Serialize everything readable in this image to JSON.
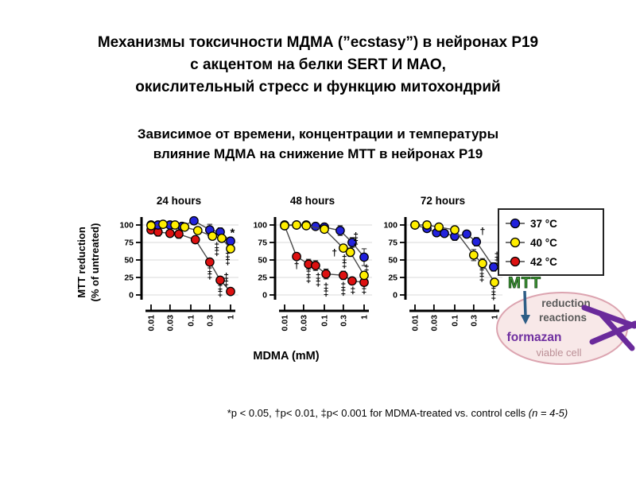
{
  "slide": {
    "title_lines": [
      "Механизмы токсичности МДМА (”ecstasy”) в нейронах Р19",
      "с акцентом на белки SERT И МАО,",
      "окислительный стресс и функцию митохондрий"
    ],
    "subtitle_lines": [
      "Зависимое от времени, концентрации и температуры",
      "влияние МДМА на снижение МТТ в нейронах Р19"
    ],
    "footnote_main": "*p < 0.05, †p< 0.01, ‡p< 0.001 for MDMA-treated vs. control cells ",
    "footnote_italic": "(n = 4-5)"
  },
  "axes": {
    "ylabel_line1": "MTT reduction",
    "ylabel_line2": "(% of untreated)",
    "xlabel": "MDMA (mM)"
  },
  "legend": {
    "items": [
      {
        "label": "37 °C",
        "color": "#2222dd"
      },
      {
        "label": "40 °C",
        "color": "#ffee00"
      },
      {
        "label": "42 °C",
        "color": "#dd1111"
      }
    ]
  },
  "mtt_diagram": {
    "mtt_label": "MTT",
    "reaction_line1": "reduction",
    "reaction_line2": "reactions",
    "product": "formazan",
    "cell": "viable cell",
    "colors": {
      "mtt": "#3f9b35",
      "mtt_outline": "#1e4d1e",
      "arrow": "#2e5e86",
      "product": "#7030a0",
      "cell_text": "#bb8f96",
      "ellipse_fill": "#f8e8e8",
      "ellipse_stroke": "#dca4b0",
      "crystal": "#6a2a9b",
      "reaction_text": "#5a5a5a"
    }
  },
  "chart_data": [
    {
      "type": "line",
      "title": "24 hours",
      "xscale": "log",
      "xlim": [
        0.01,
        1
      ],
      "ylim": [
        0,
        110
      ],
      "xticks": [
        0.01,
        0.03,
        0.1,
        0.3,
        1
      ],
      "xtick_labels": [
        "0.01",
        "0.03",
        "0.1",
        "0.3",
        "1"
      ],
      "yticks": [
        100,
        75,
        50,
        25,
        0
      ],
      "series": [
        {
          "name": "42 °C",
          "color": "#dd1111",
          "points": [
            [
              0.01,
              93,
              4
            ],
            [
              0.015,
              90,
              6
            ],
            [
              0.03,
              88,
              5
            ],
            [
              0.05,
              87,
              6
            ],
            [
              0.13,
              79,
              5
            ],
            [
              0.3,
              47,
              4
            ],
            [
              0.55,
              21,
              3
            ],
            [
              1,
              5,
              3
            ]
          ]
        },
        {
          "name": "37 °C",
          "color": "#2222dd",
          "points": [
            [
              0.01,
              100,
              3
            ],
            [
              0.015,
              100,
              0
            ],
            [
              0.03,
              100,
              3
            ],
            [
              0.06,
              98,
              4
            ],
            [
              0.12,
              106,
              5
            ],
            [
              0.3,
              93,
              8
            ],
            [
              0.55,
              90,
              6
            ],
            [
              1,
              77,
              5
            ]
          ]
        },
        {
          "name": "40 °C",
          "color": "#ffee00",
          "points": [
            [
              0.01,
              99,
              0
            ],
            [
              0.02,
              101,
              3
            ],
            [
              0.04,
              100,
              3
            ],
            [
              0.07,
              97,
              3
            ],
            [
              0.15,
              92,
              4
            ],
            [
              0.35,
              84,
              4
            ],
            [
              0.6,
              81,
              4
            ],
            [
              1,
              66,
              4
            ]
          ]
        }
      ],
      "annotations": [
        {
          "t": "*",
          "x": 1.12,
          "y": 88
        },
        {
          "t": "‡",
          "x": 0.45,
          "y": 70
        },
        {
          "t": "‡",
          "x": 0.45,
          "y": 61
        },
        {
          "t": "‡",
          "x": 0.85,
          "y": 57
        },
        {
          "t": "‡",
          "x": 0.85,
          "y": 48
        },
        {
          "t": "‡",
          "x": 0.3,
          "y": 36
        },
        {
          "t": "‡",
          "x": 0.3,
          "y": 27
        },
        {
          "t": "‡",
          "x": 0.78,
          "y": 26
        },
        {
          "t": "‡",
          "x": 0.78,
          "y": 17
        },
        {
          "t": "‡",
          "x": 0.55,
          "y": 11
        },
        {
          "t": "‡",
          "x": 0.55,
          "y": 2
        }
      ]
    },
    {
      "type": "line",
      "title": "48 hours",
      "xscale": "log",
      "xlim": [
        0.01,
        1
      ],
      "ylim": [
        0,
        110
      ],
      "xticks": [
        0.01,
        0.03,
        0.1,
        0.3,
        1
      ],
      "xtick_labels": [
        "0.01",
        "0.03",
        "0.1",
        "0.3",
        "1"
      ],
      "yticks": [
        100,
        75,
        50,
        25,
        0
      ],
      "series": [
        {
          "name": "42 °C",
          "color": "#dd1111",
          "points": [
            [
              0.01,
              99,
              0
            ],
            [
              0.02,
              55,
              5
            ],
            [
              0.04,
              44,
              7
            ],
            [
              0.06,
              42,
              7
            ],
            [
              0.11,
              30,
              7
            ],
            [
              0.3,
              28,
              6
            ],
            [
              0.5,
              20,
              5
            ],
            [
              1,
              18,
              5
            ]
          ]
        },
        {
          "name": "37 °C",
          "color": "#2222dd",
          "points": [
            [
              0.01,
              100,
              2
            ],
            [
              0.02,
              100,
              0
            ],
            [
              0.035,
              100,
              4
            ],
            [
              0.06,
              98,
              3
            ],
            [
              0.1,
              97,
              4
            ],
            [
              0.25,
              92,
              7
            ],
            [
              0.5,
              75,
              7
            ],
            [
              1,
              54,
              12
            ]
          ]
        },
        {
          "name": "40 °C",
          "color": "#ffee00",
          "points": [
            [
              0.01,
              99,
              0
            ],
            [
              0.02,
              100,
              0
            ],
            [
              0.035,
              99,
              0
            ],
            [
              0.1,
              94,
              4
            ],
            [
              0.3,
              67,
              5
            ],
            [
              0.45,
              61,
              6
            ],
            [
              1,
              28,
              5
            ]
          ]
        }
      ],
      "annotations": [
        {
          "t": "†",
          "x": 0.02,
          "y": 42
        },
        {
          "t": "‡",
          "x": 0.04,
          "y": 31
        },
        {
          "t": "‡",
          "x": 0.04,
          "y": 22
        },
        {
          "t": "‡",
          "x": 0.07,
          "y": 26
        },
        {
          "t": "‡",
          "x": 0.07,
          "y": 17
        },
        {
          "t": "‡",
          "x": 0.11,
          "y": 12
        },
        {
          "t": "‡",
          "x": 0.11,
          "y": 3
        },
        {
          "t": "†",
          "x": 0.18,
          "y": 60
        },
        {
          "t": "‡",
          "x": 0.32,
          "y": 52
        },
        {
          "t": "‡",
          "x": 0.32,
          "y": 43
        },
        {
          "t": "‡",
          "x": 0.3,
          "y": 13
        },
        {
          "t": "‡",
          "x": 0.3,
          "y": 4
        },
        {
          "t": "‡",
          "x": 0.62,
          "y": 84
        },
        {
          "t": "‡",
          "x": 0.62,
          "y": 75
        },
        {
          "t": "‡",
          "x": 0.52,
          "y": 6
        },
        {
          "t": "‡",
          "x": 1.15,
          "y": 38
        },
        {
          "t": "‡",
          "x": 1,
          "y": 6
        }
      ]
    },
    {
      "type": "line",
      "title": "72 hours",
      "xscale": "log",
      "xlim": [
        0.01,
        1
      ],
      "ylim": [
        0,
        110
      ],
      "xticks": [
        0.01,
        0.03,
        0.1,
        0.3,
        1
      ],
      "xtick_labels": [
        "0.01",
        "0.03",
        "0.1",
        "0.3",
        "1"
      ],
      "yticks": [
        100,
        75,
        50,
        25,
        0
      ],
      "series": [
        {
          "name": "37 °C",
          "color": "#2222dd",
          "points": [
            [
              0.01,
              100,
              2
            ],
            [
              0.02,
              95,
              4
            ],
            [
              0.035,
              89,
              5
            ],
            [
              0.055,
              88,
              4
            ],
            [
              0.1,
              84,
              6
            ],
            [
              0.2,
              87,
              4
            ],
            [
              0.35,
              76,
              6
            ],
            [
              0.95,
              40,
              6
            ]
          ]
        },
        {
          "name": "40 °C",
          "color": "#ffee00",
          "points": [
            [
              0.01,
              100,
              0
            ],
            [
              0.02,
              100,
              3
            ],
            [
              0.04,
              97,
              3
            ],
            [
              0.1,
              93,
              4
            ],
            [
              0.3,
              57,
              8
            ],
            [
              0.5,
              45,
              7
            ],
            [
              1,
              18,
              4
            ]
          ]
        }
      ],
      "annotations": [
        {
          "t": "†",
          "x": 0.5,
          "y": 91
        },
        {
          "t": "‡",
          "x": 1.15,
          "y": 56
        },
        {
          "t": "‡",
          "x": 1.15,
          "y": 47
        },
        {
          "t": "‡",
          "x": 0.48,
          "y": 33
        },
        {
          "t": "‡",
          "x": 0.48,
          "y": 24
        },
        {
          "t": "‡",
          "x": 0.95,
          "y": 7
        },
        {
          "t": "‡",
          "x": 0.95,
          "y": -2
        }
      ]
    }
  ]
}
